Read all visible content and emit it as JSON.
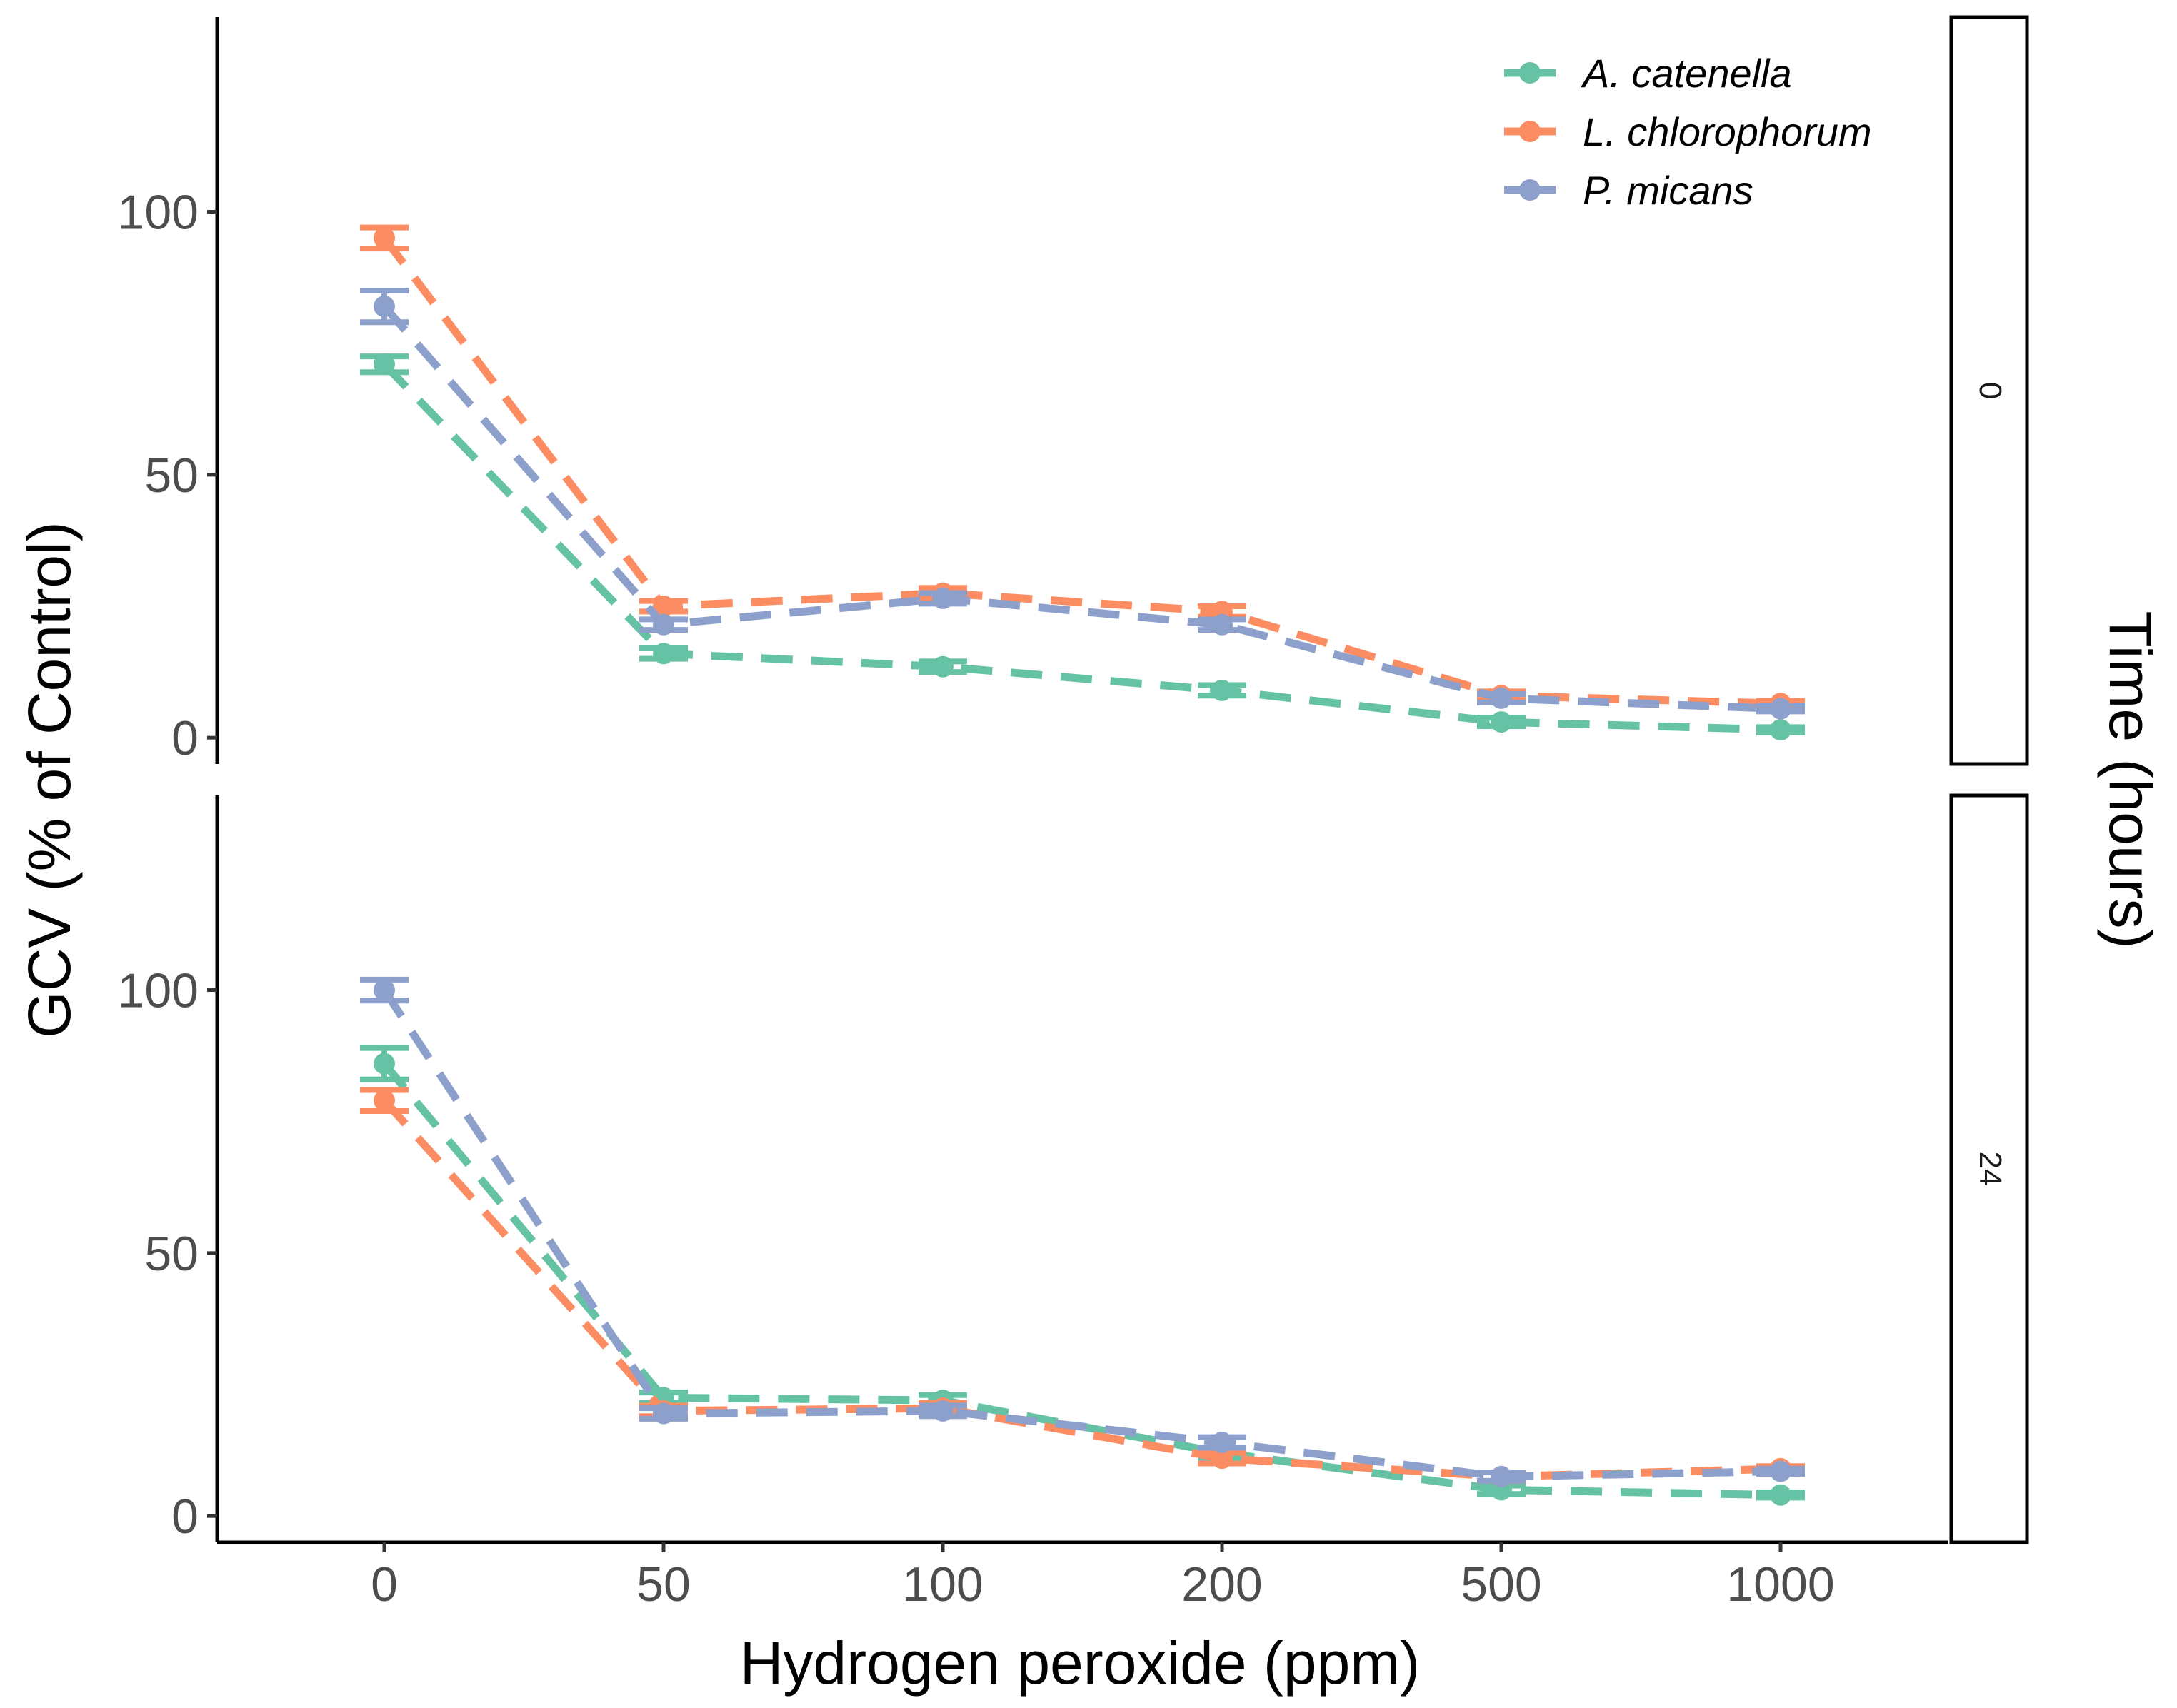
{
  "chart_data": {
    "type": "line",
    "xlabel": "Hydrogen peroxide (ppm)",
    "ylabel": "GCV (% of Control)",
    "facet_title": "Time (hours)",
    "categories": [
      "0",
      "50",
      "100",
      "200",
      "500",
      "1000"
    ],
    "yticks": [
      "0",
      "50",
      "100"
    ],
    "ylim": [
      -5,
      137
    ],
    "legend_position": "top-right",
    "series_meta": [
      {
        "name": "A. catenella",
        "color": "#66C2A5"
      },
      {
        "name": "L. chlorophorum",
        "color": "#FC8D62"
      },
      {
        "name": "P. micans",
        "color": "#8DA0CB"
      }
    ],
    "panels": [
      {
        "strip": "0",
        "series": [
          {
            "name": "A. catenella",
            "values": [
              71,
              16,
              13.5,
              9,
              3,
              1.5
            ],
            "errors": [
              1.5,
              1,
              1,
              1,
              0.8,
              0.5
            ]
          },
          {
            "name": "L. chlorophorum",
            "values": [
              95,
              25,
              27.5,
              24,
              8,
              6.5
            ],
            "errors": [
              2,
              1,
              1,
              1,
              0.8,
              0.5
            ]
          },
          {
            "name": "P. micans",
            "values": [
              82,
              21.5,
              26.5,
              21.5,
              7.5,
              5.5
            ],
            "errors": [
              3,
              1,
              1,
              1,
              0.8,
              0.5
            ]
          }
        ]
      },
      {
        "strip": "24",
        "series": [
          {
            "name": "A. catenella",
            "values": [
              86,
              22.5,
              22,
              12,
              5,
              4
            ],
            "errors": [
              3,
              1,
              1,
              1,
              0.8,
              0.5
            ]
          },
          {
            "name": "L. chlorophorum",
            "values": [
              79,
              20,
              20.5,
              11,
              7.5,
              9
            ],
            "errors": [
              2,
              1,
              1,
              1,
              0.8,
              0.5
            ]
          },
          {
            "name": "P. micans",
            "values": [
              100,
              19.5,
              20,
              14,
              7.5,
              8.5
            ],
            "errors": [
              2,
              1,
              1,
              1,
              0.8,
              0.5
            ]
          }
        ]
      }
    ]
  }
}
